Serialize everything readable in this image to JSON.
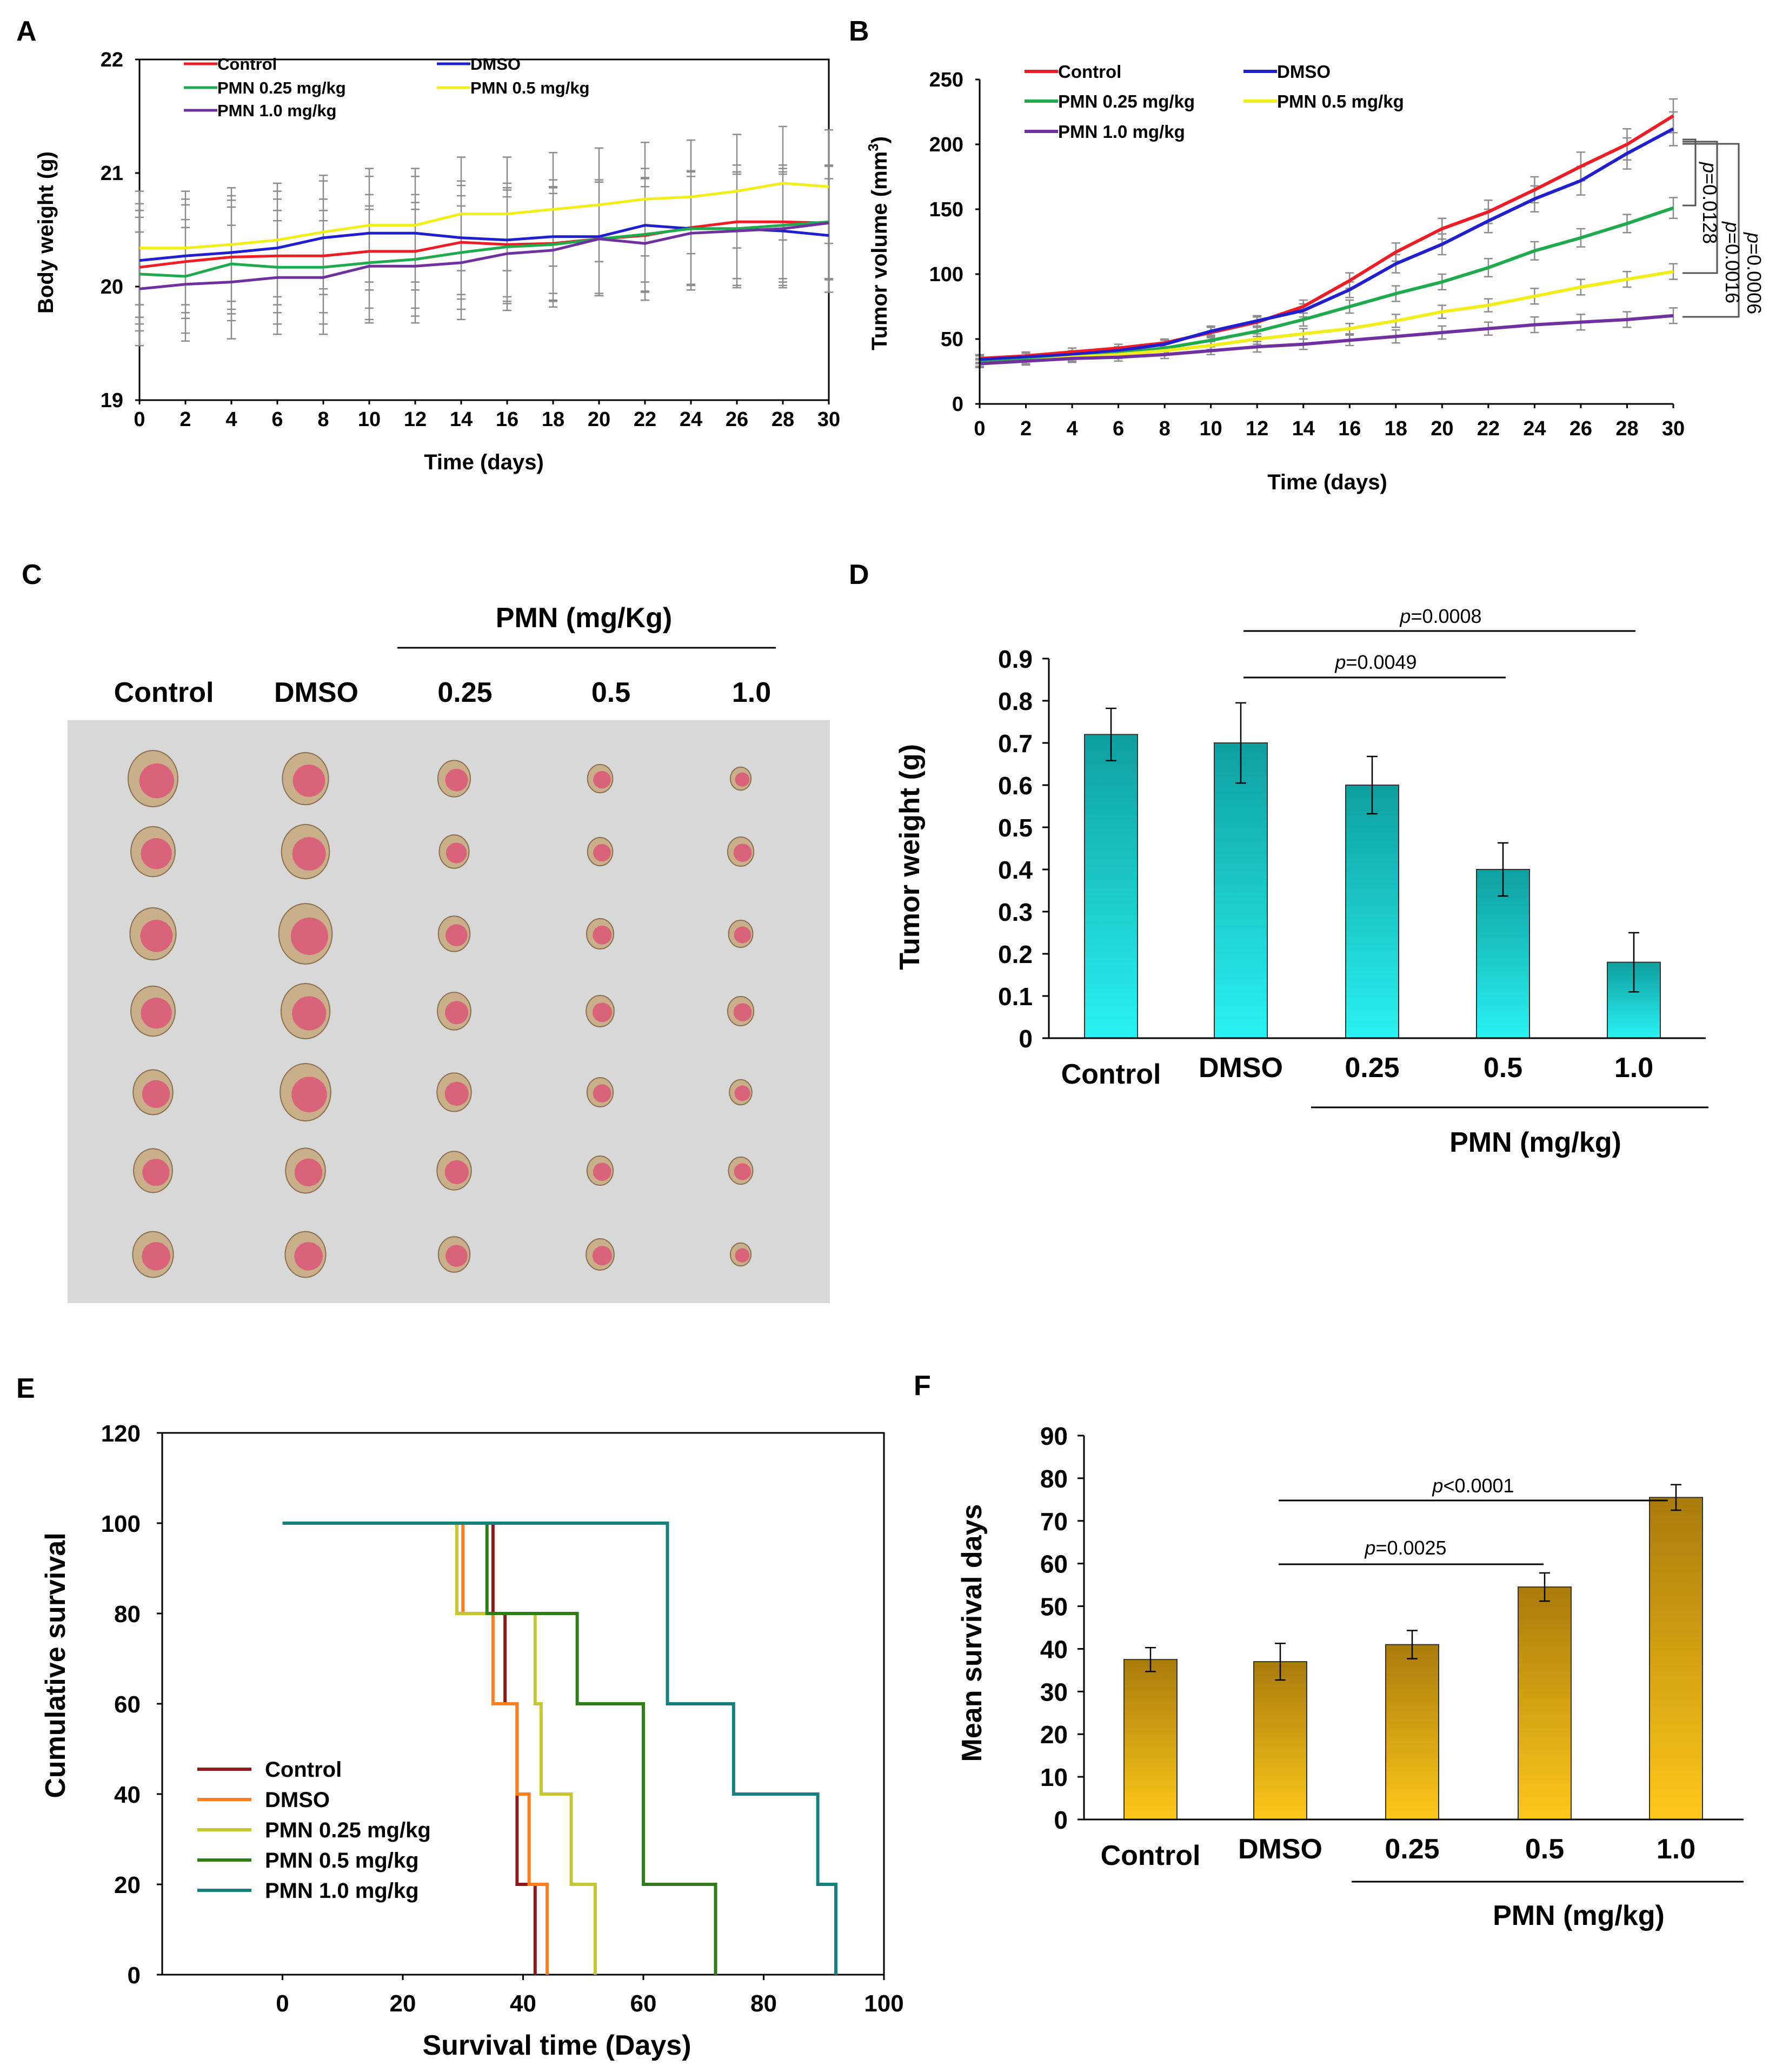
{
  "chart_data": [
    {
      "id": "A",
      "type": "line",
      "panel_label": "A",
      "xlabel": "Time (days)",
      "ylabel": "Body weight (g)",
      "xlim": [
        0,
        30
      ],
      "ylim": [
        19,
        22
      ],
      "xticks": [
        0,
        2,
        4,
        6,
        8,
        10,
        12,
        14,
        16,
        18,
        20,
        22,
        24,
        26,
        28,
        30
      ],
      "yticks": [
        19,
        20,
        21,
        22
      ],
      "x": [
        0,
        2,
        4,
        6,
        8,
        10,
        12,
        14,
        16,
        18,
        20,
        22,
        24,
        26,
        28,
        30
      ],
      "series": [
        {
          "name": "Control",
          "color": "#ee1c24",
          "values": [
            20.17,
            20.22,
            20.26,
            20.27,
            20.27,
            20.31,
            20.31,
            20.39,
            20.37,
            20.38,
            20.42,
            20.45,
            20.52,
            20.57,
            20.57,
            20.56
          ]
        },
        {
          "name": "DMSO",
          "color": "#1f1fd0",
          "values": [
            20.23,
            20.27,
            20.3,
            20.34,
            20.43,
            20.47,
            20.47,
            20.43,
            20.41,
            20.44,
            20.44,
            20.54,
            20.51,
            20.51,
            20.49,
            20.45
          ]
        },
        {
          "name": "PMN 0.25 mg/kg",
          "color": "#1faa4d",
          "values": [
            20.11,
            20.09,
            20.2,
            20.17,
            20.17,
            20.21,
            20.24,
            20.3,
            20.35,
            20.37,
            20.42,
            20.46,
            20.51,
            20.51,
            20.54,
            20.57
          ]
        },
        {
          "name": "PMN 0.5 mg/kg",
          "color": "#f2ee1c",
          "values": [
            20.34,
            20.34,
            20.37,
            20.41,
            20.48,
            20.54,
            20.54,
            20.64,
            20.64,
            20.68,
            20.72,
            20.77,
            20.79,
            20.84,
            20.91,
            20.88
          ]
        },
        {
          "name": "PMN 1.0 mg/kg",
          "color": "#7030a0",
          "values": [
            19.98,
            20.02,
            20.04,
            20.08,
            20.08,
            20.18,
            20.18,
            20.21,
            20.29,
            20.32,
            20.42,
            20.38,
            20.47,
            20.49,
            20.51,
            20.56
          ]
        }
      ],
      "error": 0.5
    },
    {
      "id": "B",
      "type": "line",
      "panel_label": "B",
      "xlabel": "Time (days)",
      "ylabel": "Tumor volume (mm",
      "ylabel_sup": "3",
      "ylabel_end": ")",
      "xlim": [
        0,
        30
      ],
      "ylim": [
        0,
        250
      ],
      "xticks": [
        0,
        2,
        4,
        6,
        8,
        10,
        12,
        14,
        16,
        18,
        20,
        22,
        24,
        26,
        28,
        30
      ],
      "yticks": [
        0,
        50,
        100,
        150,
        200,
        250
      ],
      "x": [
        0,
        2,
        4,
        6,
        8,
        10,
        12,
        14,
        16,
        18,
        20,
        22,
        24,
        26,
        28,
        30
      ],
      "series": [
        {
          "name": "Control",
          "color": "#ee1c24",
          "values": [
            35,
            37,
            40,
            43,
            47,
            55,
            63,
            75,
            95,
            117,
            135,
            148,
            165,
            183,
            200,
            222
          ],
          "errors": [
            3,
            3,
            3,
            3,
            3,
            4,
            4,
            5,
            6,
            7,
            8,
            9,
            10,
            11,
            12,
            13
          ]
        },
        {
          "name": "DMSO",
          "color": "#1f1fd0",
          "values": [
            34,
            36,
            38,
            41,
            46,
            56,
            64,
            72,
            88,
            108,
            123,
            141,
            158,
            172,
            193,
            212
          ],
          "errors": [
            3,
            3,
            3,
            3,
            3,
            4,
            4,
            5,
            6,
            7,
            8,
            9,
            10,
            11,
            12,
            13
          ]
        },
        {
          "name": "PMN 0.25 mg/kg",
          "color": "#1faa4d",
          "values": [
            32,
            34,
            36,
            39,
            43,
            49,
            56,
            65,
            75,
            85,
            94,
            105,
            118,
            128,
            139,
            151
          ],
          "errors": [
            3,
            3,
            3,
            3,
            3,
            4,
            4,
            5,
            5,
            6,
            6,
            7,
            7,
            7,
            7,
            8
          ]
        },
        {
          "name": "PMN 0.5 mg/kg",
          "color": "#f2ee1c",
          "values": [
            31,
            33,
            36,
            38,
            41,
            45,
            50,
            54,
            58,
            64,
            71,
            76,
            83,
            90,
            96,
            102
          ],
          "errors": [
            3,
            3,
            3,
            3,
            3,
            3,
            4,
            4,
            4,
            5,
            5,
            5,
            6,
            6,
            6,
            6
          ]
        },
        {
          "name": "PMN 1.0 mg/kg",
          "color": "#7030a0",
          "values": [
            31,
            33,
            35,
            36,
            38,
            41,
            44,
            46,
            49,
            52,
            55,
            58,
            61,
            63,
            65,
            68
          ],
          "errors": [
            3,
            3,
            3,
            3,
            3,
            3,
            4,
            4,
            4,
            5,
            5,
            5,
            6,
            6,
            6,
            6
          ]
        }
      ],
      "annotations": [
        "p=0.0128",
        "p=0.0016",
        "p=0.0006"
      ]
    },
    {
      "id": "D",
      "type": "bar",
      "panel_label": "D",
      "ylabel": "Tumor weight (g)",
      "categories": [
        "Control",
        "DMSO",
        "0.25",
        "0.5",
        "1.0"
      ],
      "values": [
        0.72,
        0.7,
        0.6,
        0.4,
        0.18
      ],
      "errors": [
        0.062,
        0.095,
        0.068,
        0.063,
        0.07
      ],
      "ylim": [
        0,
        0.9
      ],
      "yticks": [
        0,
        0.1,
        0.2,
        0.3,
        0.4,
        0.5,
        0.6,
        0.7,
        0.8,
        0.9
      ],
      "yticklabels": [
        "0",
        "0.1",
        "0.2",
        "0.3",
        "0.4",
        "0.5",
        "0.6",
        "0.7",
        "0.8",
        "0.9"
      ],
      "group_label": "PMN (mg/kg)",
      "color_top": "#0e9f9f",
      "color_bottom": "#2af2f2",
      "annotations": [
        "p=0.0008",
        "p=0.0049"
      ]
    },
    {
      "id": "E",
      "type": "line",
      "panel_label": "E",
      "xlabel": "Survival time (Days)",
      "ylabel": "Cumulative survival",
      "xlim": [
        -20,
        100
      ],
      "ylim": [
        0,
        120
      ],
      "xticks": [
        0,
        20,
        40,
        60,
        80,
        100
      ],
      "yticks": [
        0,
        20,
        40,
        60,
        80,
        100,
        120
      ],
      "series": [
        {
          "name": "Control",
          "color": "#8b1a1a",
          "steps": [
            [
              0,
              100
            ],
            [
              35,
              80
            ],
            [
              37,
              60
            ],
            [
              39,
              20
            ],
            [
              42,
              0
            ]
          ],
          "start": 35
        },
        {
          "name": "DMSO",
          "color": "#ff7f1e",
          "steps": [
            [
              0,
              100
            ],
            [
              30,
              80
            ],
            [
              35,
              60
            ],
            [
              39,
              40
            ],
            [
              41,
              20
            ],
            [
              44,
              0
            ]
          ],
          "start": 30
        },
        {
          "name": "PMN 0.25 mg/kg",
          "color": "#c5c832",
          "steps": [
            [
              0,
              100
            ],
            [
              29,
              80
            ],
            [
              42,
              60
            ],
            [
              43,
              40
            ],
            [
              48,
              20
            ],
            [
              52,
              0
            ]
          ],
          "start": 29
        },
        {
          "name": "PMN 0.5 mg/kg",
          "color": "#2e7d16",
          "steps": [
            [
              0,
              100
            ],
            [
              34,
              80
            ],
            [
              49,
              60
            ],
            [
              60,
              20
            ],
            [
              72,
              0
            ]
          ],
          "start": 34
        },
        {
          "name": "PMN 1.0 mg/kg",
          "color": "#17807f",
          "steps": [
            [
              0,
              100
            ],
            [
              64,
              60
            ],
            [
              75,
              40
            ],
            [
              89,
              20
            ],
            [
              92,
              0
            ]
          ],
          "start": 0
        }
      ]
    },
    {
      "id": "F",
      "type": "bar",
      "panel_label": "F",
      "ylabel": "Mean survival days",
      "categories": [
        "Control",
        "DMSO",
        "0.25",
        "0.5",
        "1.0"
      ],
      "values": [
        37.5,
        37.0,
        41.0,
        54.5,
        75.5
      ],
      "errors": [
        2.8,
        4.3,
        3.3,
        3.3,
        3.0
      ],
      "ylim": [
        0,
        90
      ],
      "yticks": [
        0,
        10,
        20,
        30,
        40,
        50,
        60,
        70,
        80,
        90
      ],
      "yticklabels": [
        "0",
        "10",
        "20",
        "30",
        "40",
        "50",
        "60",
        "70",
        "80",
        "90"
      ],
      "group_label": "PMN (mg/kg)",
      "color_top": "#a97b0c",
      "color_bottom": "#ffc81a",
      "annotations": [
        "p<0.0001",
        "p=0.0025"
      ]
    }
  ],
  "photo": {
    "panel_label": "C",
    "group_label": "PMN (mg/Kg)",
    "columns": [
      "Control",
      "DMSO",
      "0.25",
      "0.5",
      "1.0"
    ],
    "tumor_sizes": [
      [
        1.0,
        0.88,
        0.92,
        0.88,
        0.78,
        0.76,
        0.8
      ],
      [
        0.92,
        0.96,
        1.08,
        0.98,
        1.02,
        0.78,
        0.8
      ],
      [
        0.62,
        0.56,
        0.6,
        0.64,
        0.66,
        0.66,
        0.6
      ],
      [
        0.46,
        0.46,
        0.5,
        0.52,
        0.48,
        0.48,
        0.52
      ],
      [
        0.36,
        0.48,
        0.44,
        0.48,
        0.4,
        0.44,
        0.36
      ]
    ]
  },
  "labels": {
    "A": "A",
    "B": "B",
    "C": "C",
    "D": "D",
    "E": "E",
    "F": "F",
    "b_p1": "=0.0128",
    "b_p2": "=0.0016",
    "b_p3": "=0.0006",
    "d_p1": "=0.0008",
    "d_p2": "=0.0049",
    "f_p1": "<0.0001",
    "f_p2": "=0.0025",
    "p": "p"
  }
}
